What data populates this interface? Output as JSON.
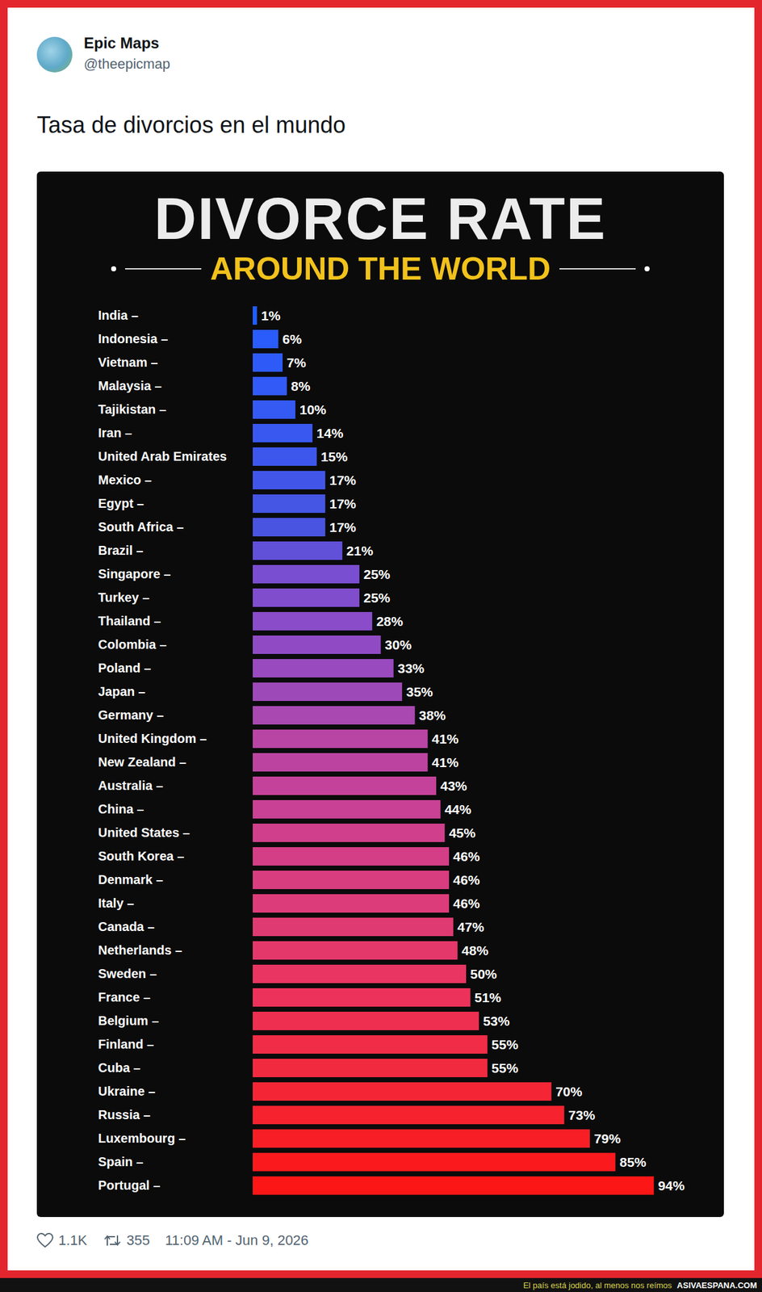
{
  "header": {
    "name": "Epic Maps",
    "handle": "@theepicmap",
    "text": "Tasa de divorcios en el mundo"
  },
  "chart_data": {
    "type": "bar",
    "orientation": "horizontal",
    "title": "DIVORCE RATE",
    "subtitle": "AROUND THE WORLD",
    "categories": [
      "India –",
      "Indonesia –",
      "Vietnam –",
      "Malaysia –",
      "Tajikistan –",
      "Iran –",
      "United Arab Emirates",
      "Mexico –",
      "Egypt –",
      "South Africa –",
      "Brazil –",
      "Singapore –",
      "Turkey –",
      "Thailand –",
      "Colombia –",
      "Poland –",
      "Japan –",
      "Germany –",
      "United Kingdom –",
      "New Zealand –",
      "Australia –",
      "China –",
      "United States –",
      "South Korea –",
      "Denmark –",
      "Italy –",
      "Canada –",
      "Netherlands –",
      "Sweden –",
      "France –",
      "Belgium –",
      "Finland –",
      "Cuba –",
      "Ukraine –",
      "Russia –",
      "Luxembourg –",
      "Spain –",
      "Portugal –"
    ],
    "values": [
      1,
      6,
      7,
      8,
      10,
      14,
      15,
      17,
      17,
      17,
      21,
      25,
      25,
      28,
      30,
      33,
      35,
      38,
      41,
      41,
      43,
      44,
      45,
      46,
      46,
      46,
      47,
      48,
      50,
      51,
      53,
      55,
      55,
      70,
      73,
      79,
      85,
      94
    ],
    "value_labels": [
      "1%",
      "6%",
      "7%",
      "8%",
      "10%",
      "14%",
      "15%",
      "17%",
      "17%",
      "17%",
      "21%",
      "25%",
      "25%",
      "28%",
      "30%",
      "33%",
      "35%",
      "38%",
      "41%",
      "41%",
      "43%",
      "44%",
      "45%",
      "46%",
      "46%",
      "46%",
      "47%",
      "48%",
      "50%",
      "51%",
      "53%",
      "55%",
      "55%",
      "70%",
      "73%",
      "79%",
      "85%",
      "94%"
    ],
    "colors": [
      "#1f5eff",
      "#2a5cfb",
      "#2e5bf8",
      "#325af6",
      "#3559f3",
      "#3958ef",
      "#3d57ec",
      "#4156e8",
      "#4555e4",
      "#4954e0",
      "#6150d8",
      "#7a4ed0",
      "#804dcc",
      "#8a4cc8",
      "#904bc4",
      "#984abe",
      "#9e49b8",
      "#a848b0",
      "#b845a4",
      "#bc44a0",
      "#c4429a",
      "#c84194",
      "#d03f8c",
      "#d43e86",
      "#d83d80",
      "#dc3c7a",
      "#e03a72",
      "#e4386a",
      "#e83562",
      "#ec325a",
      "#ee2f50",
      "#f02c46",
      "#f22a40",
      "#f42636",
      "#f6222e",
      "#f81e26",
      "#fa1a1e",
      "#fc1616"
    ],
    "xlim": [
      0,
      100
    ],
    "data_labels": true,
    "tick_labels": "y",
    "grid": false
  },
  "footer": {
    "likes": "1.1K",
    "retweets": "355",
    "timestamp": "11:09 AM - Jun 9, 2026"
  },
  "banner": {
    "text": "El país está jodido, al menos nos reímos",
    "site": "ASIVAESPANA.COM"
  }
}
